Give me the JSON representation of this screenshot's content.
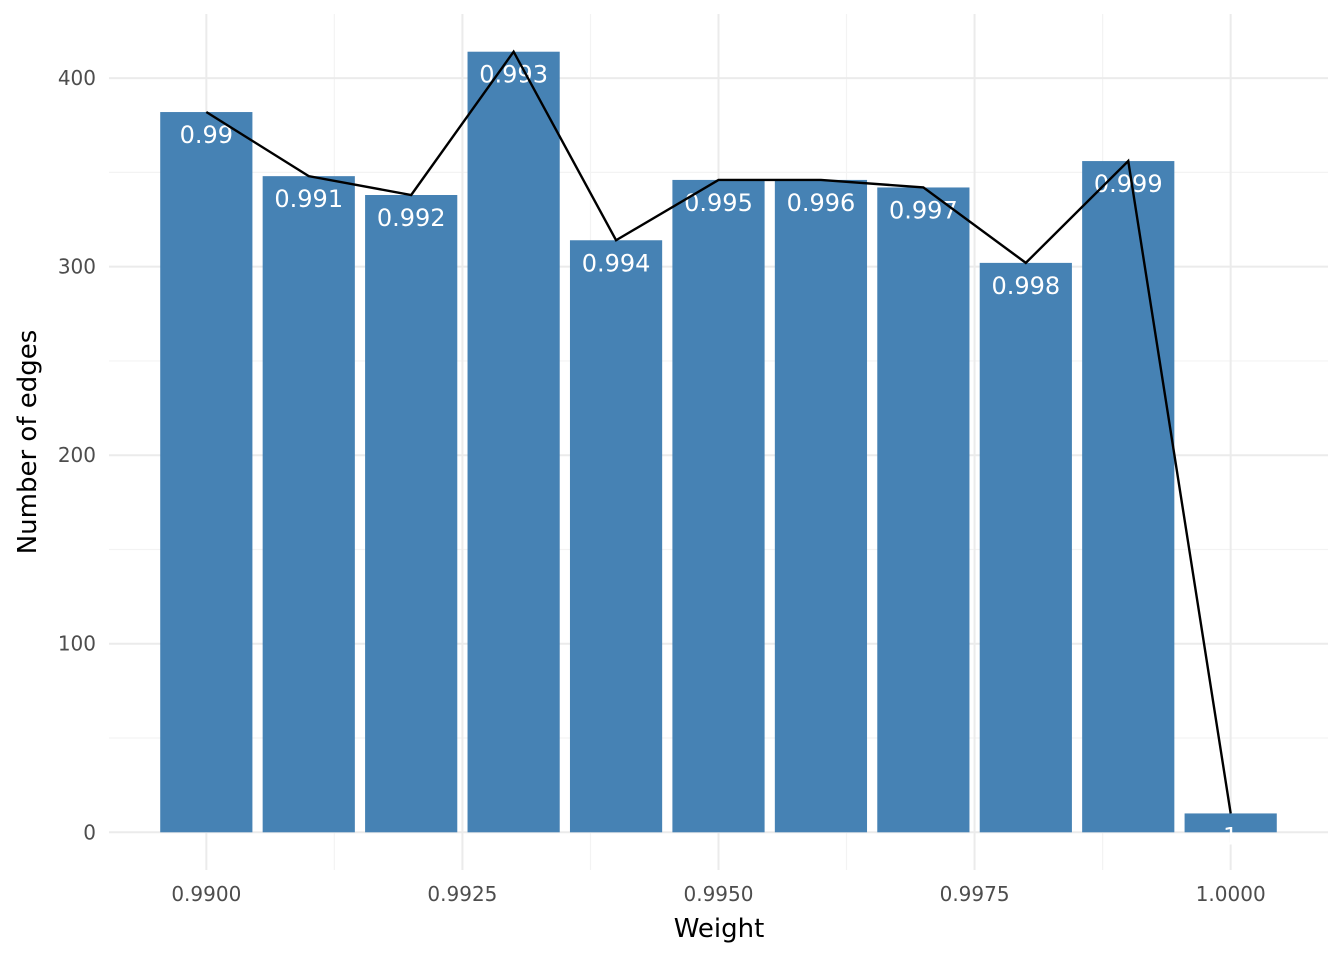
{
  "chart_data": {
    "type": "bar",
    "xlabel": "Weight",
    "ylabel": "Number of edges",
    "x": [
      0.99,
      0.991,
      0.992,
      0.993,
      0.994,
      0.995,
      0.996,
      0.997,
      0.998,
      0.999,
      1.0
    ],
    "values": [
      382,
      348,
      338,
      414,
      314,
      346,
      346,
      342,
      302,
      356,
      10
    ],
    "bar_labels": [
      "0.99",
      "0.991",
      "0.992",
      "0.993",
      "0.994",
      "0.995",
      "0.996",
      "0.997",
      "0.998",
      "0.999",
      "1"
    ],
    "line_values": [
      382,
      348,
      338,
      414,
      314,
      346,
      346,
      342,
      302,
      356,
      10
    ],
    "xlim": [
      0.98905,
      1.00095
    ],
    "ylim": [
      -20,
      434
    ],
    "x_ticks": [
      0.99,
      0.9925,
      0.995,
      0.9975,
      1.0
    ],
    "x_tick_labels": [
      "0.9900",
      "0.9925",
      "0.9950",
      "0.9975",
      "1.0000"
    ],
    "y_ticks": [
      0,
      100,
      200,
      300,
      400
    ],
    "y_tick_labels": [
      "0",
      "100",
      "200",
      "300",
      "400"
    ],
    "grid": true,
    "colors": {
      "bar": "#4682b4",
      "line": "#000000",
      "bar_label": "#ffffff"
    }
  }
}
